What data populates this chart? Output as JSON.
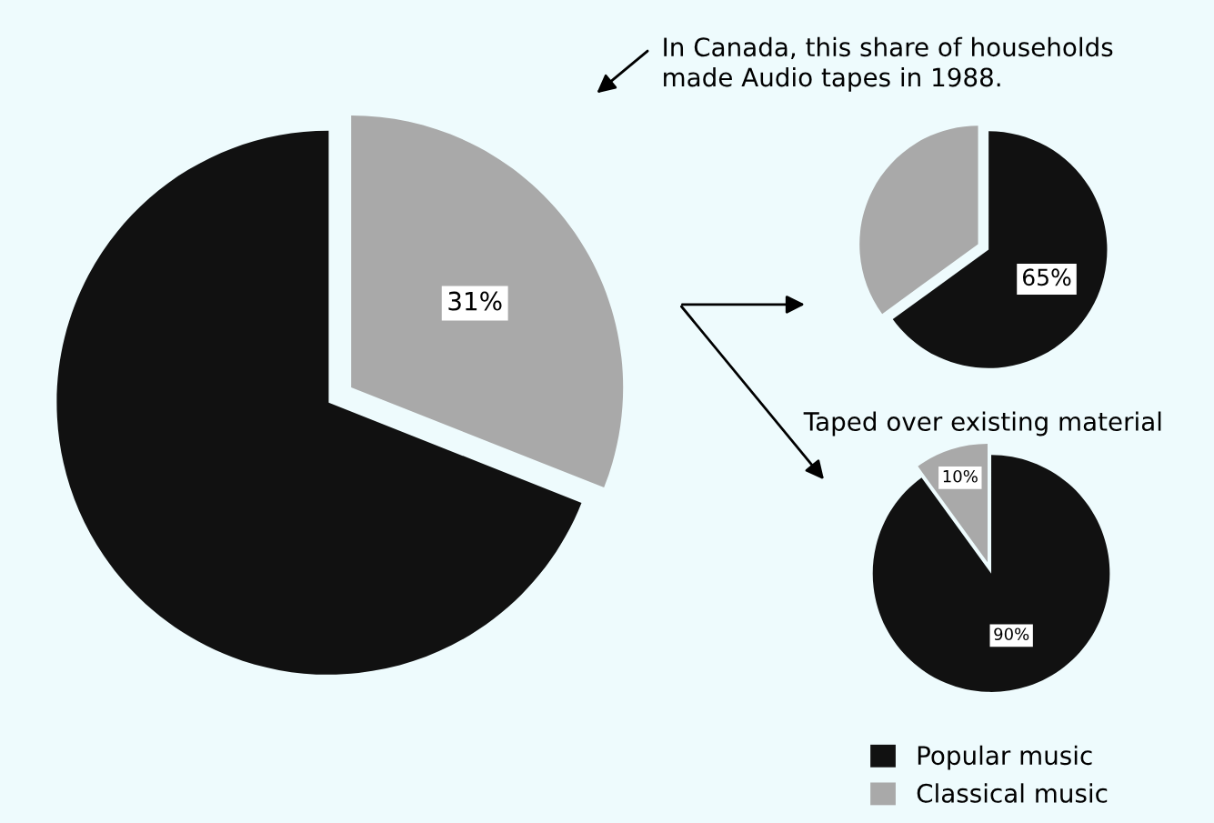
{
  "chart_data": [
    {
      "type": "pie",
      "categories": [
        null,
        null
      ],
      "values": [
        31,
        69
      ],
      "colors": [
        "#a9a9a9",
        "#111111"
      ],
      "value_labels": [
        "31%",
        null
      ],
      "annotations": [
        "In Canada, this share of households\nmade Audio tapes in 1988."
      ]
    },
    {
      "type": "pie",
      "categories": [
        null,
        null
      ],
      "values": [
        65,
        35
      ],
      "colors": [
        "#111111",
        "#a9a9a9"
      ],
      "value_labels": [
        "65%",
        null
      ],
      "annotations": [
        "Taped over existing material"
      ]
    },
    {
      "type": "pie",
      "categories": [
        "Popular music",
        "Classical music"
      ],
      "values": [
        90,
        10
      ],
      "colors": [
        "#111111",
        "#a9a9a9"
      ],
      "value_labels": [
        "90%",
        "10%"
      ],
      "legend": "bottom"
    }
  ]
}
